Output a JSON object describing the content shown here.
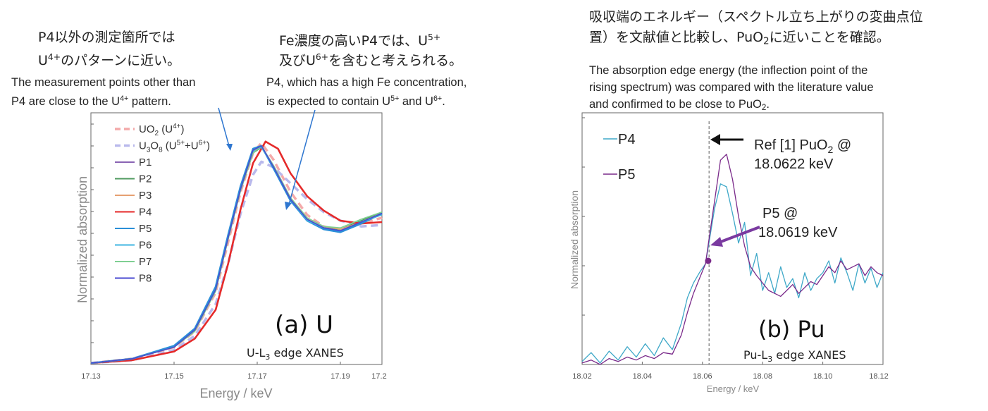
{
  "annotations": {
    "left_jp_1": "P4以外の測定箇所では",
    "left_jp_2a": "U",
    "left_jp_2sup": "4+",
    "left_jp_2b": "のパターンに近い。",
    "left_en_1": "The measurement points other than",
    "left_en_2a": "P4 are close to the U",
    "left_en_2sup": "4+",
    "left_en_2b": " pattern.",
    "mid_jp_1a": "Fe濃度の高いP4では、U",
    "mid_jp_1sup": "5+",
    "mid_jp_2a": "及びU",
    "mid_jp_2sup": "6+",
    "mid_jp_2b": "を含むと考えられる。",
    "mid_en_1": "P4, which has a high Fe concentration,",
    "mid_en_2a": "is expected to contain U",
    "mid_en_2sup1": "5+",
    "mid_en_2b": " and U",
    "mid_en_2sup2": "6+",
    "mid_en_2c": ".",
    "right_jp_1": "吸収端のエネルギー（スペクトル立ち上がりの変曲点位",
    "right_jp_2a": "置）を文献値と比較し、PuO",
    "right_jp_2sub": "2",
    "right_jp_2b": "に近いことを確認。",
    "right_en_1": "The absorption edge energy (the inflection point of the",
    "right_en_2": "rising spectrum) was compared with the literature value",
    "right_en_3a": "and confirmed to be close to PuO",
    "right_en_3sub": "2",
    "right_en_3b": "."
  },
  "colors": {
    "UO2": "#f4aaaa",
    "U3O8": "#b9b9ec",
    "P1": "#8a64b4",
    "P2": "#4f9a5f",
    "P3": "#e6a072",
    "P4": "#e52a2a",
    "P5": "#2a8fd8",
    "P6": "#3fb5e2",
    "P7": "#7fcf92",
    "P8": "#4a4ad0",
    "Pu_P4": "#3ea8c8",
    "Pu_P5": "#7a2a8a",
    "arrow_blue": "#2f77d0",
    "arrow_purple": "#7a3aa0"
  },
  "chart_data": [
    {
      "type": "line",
      "title": "(a) U",
      "subtitle_a": "U-L",
      "subtitle_sub": "3",
      "subtitle_b": " edge XANES",
      "xlabel": "Energy / keV",
      "ylabel": "Normalized absorption",
      "xlim": [
        17.13,
        17.2
      ],
      "ylim": [
        0,
        1.75
      ],
      "xticks": [
        "17.13",
        "17.15",
        "17.17",
        "17.19",
        "17.2"
      ],
      "xtick_values": [
        17.13,
        17.15,
        17.17,
        17.19,
        17.2
      ],
      "legend": [
        {
          "key": "UO2",
          "label_a": "UO",
          "label_sub": "2",
          "label_b": " (U",
          "label_sup": "4+",
          "label_c": ")"
        },
        {
          "key": "U3O8",
          "label_a": "U",
          "label_sub": "3",
          "label_b": "O",
          "label_sub2": "8",
          "label_c": " (U",
          "label_sup": "5+",
          "label_d": "+U",
          "label_sup2": "6+",
          "label_e": ")"
        },
        {
          "key": "P1",
          "label_a": "P1"
        },
        {
          "key": "P2",
          "label_a": "P2"
        },
        {
          "key": "P3",
          "label_a": "P3"
        },
        {
          "key": "P4",
          "label_a": "P4"
        },
        {
          "key": "P5",
          "label_a": "P5"
        },
        {
          "key": "P6",
          "label_a": "P6"
        },
        {
          "key": "P7",
          "label_a": "P7"
        },
        {
          "key": "P8",
          "label_a": "P8"
        }
      ],
      "series": [
        {
          "key": "UO2",
          "dashed": true,
          "x": [
            17.13,
            17.14,
            17.15,
            17.155,
            17.16,
            17.163,
            17.166,
            17.169,
            17.171,
            17.174,
            17.178,
            17.182,
            17.186,
            17.19,
            17.195,
            17.2
          ],
          "y": [
            0.01,
            0.04,
            0.12,
            0.23,
            0.5,
            0.85,
            1.2,
            1.47,
            1.54,
            1.42,
            1.2,
            1.04,
            0.96,
            0.93,
            0.98,
            1.02
          ]
        },
        {
          "key": "U3O8",
          "dashed": true,
          "x": [
            17.13,
            17.14,
            17.15,
            17.155,
            17.16,
            17.163,
            17.166,
            17.169,
            17.171,
            17.174,
            17.178,
            17.182,
            17.186,
            17.19,
            17.195,
            17.2
          ],
          "y": [
            0.01,
            0.03,
            0.1,
            0.2,
            0.42,
            0.7,
            1.05,
            1.32,
            1.41,
            1.37,
            1.26,
            1.15,
            1.06,
            1.0,
            0.96,
            0.97
          ]
        },
        {
          "key": "P1",
          "x": [
            17.13,
            17.14,
            17.15,
            17.155,
            17.16,
            17.163,
            17.166,
            17.169,
            17.171,
            17.174,
            17.178,
            17.182,
            17.186,
            17.19,
            17.195,
            17.2
          ],
          "y": [
            0.01,
            0.04,
            0.12,
            0.24,
            0.52,
            0.88,
            1.22,
            1.48,
            1.52,
            1.38,
            1.16,
            1.01,
            0.95,
            0.93,
            0.99,
            1.05
          ]
        },
        {
          "key": "P2",
          "x": [
            17.13,
            17.14,
            17.15,
            17.155,
            17.16,
            17.163,
            17.166,
            17.169,
            17.171,
            17.174,
            17.178,
            17.182,
            17.186,
            17.19,
            17.195,
            17.2
          ],
          "y": [
            0.01,
            0.04,
            0.12,
            0.24,
            0.51,
            0.87,
            1.21,
            1.47,
            1.51,
            1.37,
            1.15,
            1.0,
            0.95,
            0.94,
            1.0,
            1.06
          ]
        },
        {
          "key": "P3",
          "x": [
            17.13,
            17.14,
            17.15,
            17.155,
            17.16,
            17.163,
            17.166,
            17.169,
            17.171,
            17.174,
            17.178,
            17.182,
            17.186,
            17.19,
            17.195,
            17.2
          ],
          "y": [
            0.01,
            0.04,
            0.12,
            0.24,
            0.52,
            0.87,
            1.22,
            1.48,
            1.52,
            1.37,
            1.16,
            1.02,
            0.96,
            0.94,
            0.99,
            1.04
          ]
        },
        {
          "key": "P4",
          "thick": true,
          "x": [
            17.13,
            17.14,
            17.15,
            17.155,
            17.16,
            17.163,
            17.166,
            17.169,
            17.172,
            17.175,
            17.178,
            17.182,
            17.186,
            17.19,
            17.195,
            17.2
          ],
          "y": [
            0.01,
            0.03,
            0.09,
            0.18,
            0.38,
            0.7,
            1.08,
            1.4,
            1.55,
            1.5,
            1.33,
            1.17,
            1.07,
            1.0,
            0.98,
            0.99
          ]
        },
        {
          "key": "P5",
          "thick": true,
          "x": [
            17.13,
            17.14,
            17.15,
            17.155,
            17.16,
            17.163,
            17.166,
            17.169,
            17.171,
            17.174,
            17.178,
            17.182,
            17.186,
            17.19,
            17.195,
            17.2
          ],
          "y": [
            0.01,
            0.04,
            0.13,
            0.25,
            0.54,
            0.9,
            1.24,
            1.5,
            1.52,
            1.36,
            1.14,
            1.0,
            0.94,
            0.92,
            0.98,
            1.05
          ]
        },
        {
          "key": "P6",
          "x": [
            17.13,
            17.14,
            17.15,
            17.155,
            17.16,
            17.163,
            17.166,
            17.169,
            17.171,
            17.174,
            17.178,
            17.182,
            17.186,
            17.19,
            17.195,
            17.2
          ],
          "y": [
            0.01,
            0.04,
            0.12,
            0.24,
            0.52,
            0.88,
            1.22,
            1.48,
            1.51,
            1.37,
            1.15,
            1.0,
            0.95,
            0.93,
            0.99,
            1.04
          ]
        },
        {
          "key": "P7",
          "x": [
            17.13,
            17.14,
            17.15,
            17.155,
            17.16,
            17.163,
            17.166,
            17.169,
            17.171,
            17.174,
            17.178,
            17.182,
            17.186,
            17.19,
            17.195,
            17.2
          ],
          "y": [
            0.01,
            0.04,
            0.12,
            0.23,
            0.51,
            0.87,
            1.21,
            1.47,
            1.52,
            1.38,
            1.16,
            1.02,
            0.96,
            0.95,
            1.01,
            1.06
          ]
        },
        {
          "key": "P8",
          "x": [
            17.13,
            17.14,
            17.15,
            17.155,
            17.16,
            17.163,
            17.166,
            17.169,
            17.171,
            17.174,
            17.178,
            17.182,
            17.186,
            17.19,
            17.195,
            17.2
          ],
          "y": [
            0.01,
            0.04,
            0.12,
            0.24,
            0.52,
            0.88,
            1.22,
            1.49,
            1.52,
            1.37,
            1.15,
            1.01,
            0.95,
            0.93,
            0.99,
            1.05
          ]
        }
      ]
    },
    {
      "type": "line",
      "title": "(b) Pu",
      "subtitle_a": "Pu-L",
      "subtitle_sub": "3",
      "subtitle_b": " edge XANES",
      "xlabel": "Energy / keV",
      "ylabel": "Normalized absorption",
      "xlim": [
        18.02,
        18.12
      ],
      "ylim": [
        0,
        1.7
      ],
      "xticks": [
        "18.02",
        "18.04",
        "18.06",
        "18.08",
        "18.10",
        "18.12"
      ],
      "xtick_values": [
        18.02,
        18.04,
        18.06,
        18.08,
        18.1,
        18.12
      ],
      "ref_line_x": 18.0622,
      "ref_label_1a": "Ref [1] PuO",
      "ref_label_1sub": "2",
      "ref_label_1b": " @",
      "ref_label_2": "18.0622 keV",
      "p5_label_1": "P5 @",
      "p5_label_2": "18.0619 keV",
      "p5_point": {
        "x": 18.0619,
        "y": 0.7
      },
      "legend": [
        {
          "key": "Pu_P4",
          "label_a": "P4"
        },
        {
          "key": "Pu_P5",
          "label_a": "P5"
        }
      ],
      "series": [
        {
          "key": "Pu_P4",
          "x": [
            18.02,
            18.023,
            18.026,
            18.029,
            18.032,
            18.035,
            18.038,
            18.041,
            18.044,
            18.047,
            18.05,
            18.053,
            18.055,
            18.057,
            18.059,
            18.061,
            18.062,
            18.064,
            18.066,
            18.068,
            18.07,
            18.072,
            18.074,
            18.076,
            18.078,
            18.08,
            18.082,
            18.084,
            18.086,
            18.088,
            18.09,
            18.092,
            18.094,
            18.096,
            18.098,
            18.1,
            18.102,
            18.104,
            18.106,
            18.108,
            18.11,
            18.112,
            18.114,
            18.116,
            18.118,
            18.12
          ],
          "y": [
            0.02,
            0.08,
            0.01,
            0.09,
            0.03,
            0.12,
            0.05,
            0.14,
            0.06,
            0.18,
            0.1,
            0.28,
            0.45,
            0.55,
            0.62,
            0.68,
            0.8,
            1.05,
            1.22,
            1.2,
            1.02,
            0.82,
            0.96,
            0.6,
            0.75,
            0.5,
            0.62,
            0.48,
            0.66,
            0.52,
            0.58,
            0.45,
            0.62,
            0.5,
            0.58,
            0.62,
            0.7,
            0.55,
            0.72,
            0.62,
            0.5,
            0.68,
            0.55,
            0.65,
            0.52,
            0.62
          ]
        },
        {
          "key": "Pu_P5",
          "x": [
            18.02,
            18.023,
            18.026,
            18.029,
            18.032,
            18.035,
            18.038,
            18.041,
            18.044,
            18.047,
            18.05,
            18.053,
            18.055,
            18.057,
            18.059,
            18.061,
            18.062,
            18.064,
            18.066,
            18.068,
            18.07,
            18.072,
            18.074,
            18.076,
            18.078,
            18.08,
            18.082,
            18.084,
            18.086,
            18.088,
            18.09,
            18.092,
            18.094,
            18.096,
            18.098,
            18.1,
            18.102,
            18.104,
            18.106,
            18.108,
            18.11,
            18.112,
            18.114,
            18.116,
            18.118,
            18.12
          ],
          "y": [
            0.01,
            0.03,
            0.0,
            0.04,
            0.02,
            0.05,
            0.03,
            0.06,
            0.04,
            0.08,
            0.07,
            0.2,
            0.35,
            0.48,
            0.58,
            0.68,
            0.82,
            1.1,
            1.38,
            1.42,
            1.25,
            1.0,
            0.8,
            0.66,
            0.6,
            0.55,
            0.5,
            0.48,
            0.46,
            0.5,
            0.54,
            0.48,
            0.52,
            0.56,
            0.54,
            0.6,
            0.66,
            0.62,
            0.7,
            0.64,
            0.66,
            0.68,
            0.6,
            0.66,
            0.62,
            0.6
          ]
        }
      ]
    }
  ]
}
